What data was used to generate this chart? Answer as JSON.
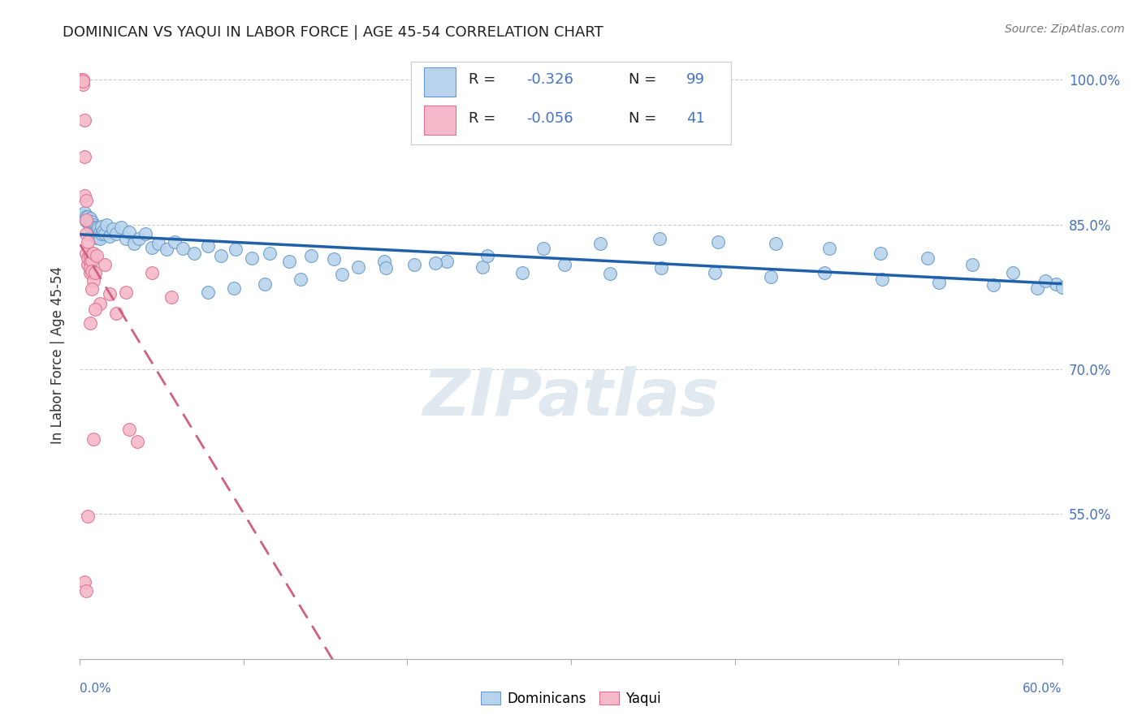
{
  "title": "DOMINICAN VS YAQUI IN LABOR FORCE | AGE 45-54 CORRELATION CHART",
  "source": "Source: ZipAtlas.com",
  "ylabel": "In Labor Force | Age 45-54",
  "xlim": [
    0.0,
    0.6
  ],
  "ylim": [
    0.4,
    1.03
  ],
  "yticks": [
    0.55,
    0.7,
    0.85,
    1.0
  ],
  "ytick_labels": [
    "55.0%",
    "70.0%",
    "85.0%",
    "100.0%"
  ],
  "xtick_left_label": "0.0%",
  "xtick_right_label": "60.0%",
  "dominican_color": "#b8d4ec",
  "yaqui_color": "#f5b8c8",
  "dominican_edge_color": "#6699cc",
  "yaqui_edge_color": "#e07090",
  "dominican_line_color": "#2060a8",
  "yaqui_line_color": "#d06080",
  "background_color": "#ffffff",
  "grid_color": "#cccccc",
  "title_color": "#222222",
  "right_tick_color": "#4472c4",
  "legend_text_color": "#222222",
  "legend_value_color": "#4472c4",
  "watermark": "ZIPatlas",
  "dom_scatter_x": [
    0.002,
    0.003,
    0.004,
    0.004,
    0.005,
    0.005,
    0.005,
    0.006,
    0.006,
    0.006,
    0.006,
    0.007,
    0.007,
    0.007,
    0.007,
    0.008,
    0.008,
    0.008,
    0.008,
    0.009,
    0.009,
    0.009,
    0.009,
    0.009,
    0.01,
    0.01,
    0.01,
    0.01,
    0.01,
    0.011,
    0.011,
    0.011,
    0.012,
    0.012,
    0.013,
    0.013,
    0.014,
    0.015,
    0.016,
    0.018,
    0.02,
    0.022,
    0.025,
    0.028,
    0.03,
    0.033,
    0.036,
    0.04,
    0.044,
    0.048,
    0.053,
    0.058,
    0.063,
    0.07,
    0.078,
    0.086,
    0.095,
    0.105,
    0.116,
    0.128,
    0.141,
    0.155,
    0.17,
    0.186,
    0.204,
    0.224,
    0.246,
    0.27,
    0.296,
    0.324,
    0.355,
    0.388,
    0.422,
    0.455,
    0.49,
    0.525,
    0.558,
    0.585,
    0.596,
    0.6,
    0.59,
    0.57,
    0.545,
    0.518,
    0.489,
    0.458,
    0.425,
    0.39,
    0.354,
    0.318,
    0.283,
    0.249,
    0.217,
    0.187,
    0.16,
    0.135,
    0.113,
    0.094,
    0.078
  ],
  "dom_scatter_y": [
    0.86,
    0.862,
    0.858,
    0.854,
    0.858,
    0.852,
    0.855,
    0.854,
    0.85,
    0.848,
    0.856,
    0.851,
    0.848,
    0.845,
    0.853,
    0.848,
    0.844,
    0.842,
    0.85,
    0.846,
    0.842,
    0.84,
    0.847,
    0.838,
    0.843,
    0.847,
    0.84,
    0.836,
    0.844,
    0.842,
    0.846,
    0.836,
    0.842,
    0.835,
    0.84,
    0.848,
    0.843,
    0.84,
    0.85,
    0.838,
    0.845,
    0.84,
    0.847,
    0.835,
    0.842,
    0.83,
    0.835,
    0.84,
    0.826,
    0.83,
    0.824,
    0.832,
    0.825,
    0.82,
    0.828,
    0.818,
    0.824,
    0.815,
    0.82,
    0.812,
    0.818,
    0.814,
    0.806,
    0.812,
    0.808,
    0.812,
    0.806,
    0.8,
    0.808,
    0.799,
    0.805,
    0.8,
    0.796,
    0.8,
    0.793,
    0.79,
    0.787,
    0.784,
    0.788,
    0.785,
    0.792,
    0.8,
    0.808,
    0.815,
    0.82,
    0.825,
    0.83,
    0.832,
    0.835,
    0.83,
    0.825,
    0.818,
    0.81,
    0.805,
    0.798,
    0.793,
    0.788,
    0.784,
    0.78
  ],
  "yaqui_scatter_x": [
    0.001,
    0.001,
    0.002,
    0.002,
    0.002,
    0.003,
    0.003,
    0.003,
    0.004,
    0.004,
    0.004,
    0.004,
    0.005,
    0.005,
    0.005,
    0.006,
    0.006,
    0.006,
    0.006,
    0.007,
    0.007,
    0.008,
    0.008,
    0.009,
    0.01,
    0.012,
    0.015,
    0.018,
    0.022,
    0.028,
    0.035,
    0.044,
    0.056,
    0.03,
    0.008,
    0.005,
    0.003,
    0.004,
    0.006,
    0.007,
    0.009
  ],
  "yaqui_scatter_y": [
    1.0,
    0.998,
    1.0,
    0.995,
    0.998,
    0.958,
    0.92,
    0.88,
    0.875,
    0.855,
    0.84,
    0.82,
    0.832,
    0.808,
    0.815,
    0.818,
    0.8,
    0.812,
    0.805,
    0.813,
    0.802,
    0.82,
    0.792,
    0.8,
    0.818,
    0.768,
    0.808,
    0.778,
    0.758,
    0.78,
    0.625,
    0.8,
    0.775,
    0.638,
    0.628,
    0.548,
    0.48,
    0.47,
    0.748,
    0.783,
    0.762
  ]
}
